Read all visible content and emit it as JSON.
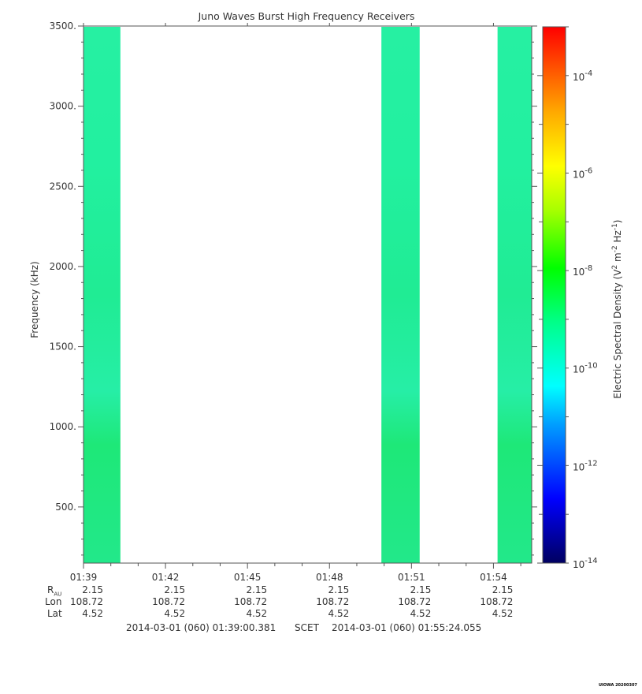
{
  "chart_data": {
    "type": "heatmap",
    "title": "Juno Waves Burst High Frequency Receivers",
    "ylabel": "Frequency (kHz)",
    "colorbar_label": "Electric Spectral Density (V² m⁻² Hz⁻¹)",
    "colorbar_label_parts": [
      "Electric Spectral Density (V",
      "2",
      " m",
      "-2",
      " Hz",
      "-1",
      ")"
    ],
    "ylim": [
      150,
      3500
    ],
    "yticks": [
      500,
      1000,
      1500,
      2000,
      2500,
      3000,
      3500
    ],
    "ytick_labels": [
      "500.",
      "1000.",
      "1500.",
      "2000.",
      "2500.",
      "3000.",
      "3500."
    ],
    "x_range": [
      "01:39:00",
      "01:55:24"
    ],
    "x_tick_labels": [
      "01:39",
      "01:42",
      "01:45",
      "01:48",
      "01:51",
      "01:54"
    ],
    "x_tick_minutes": [
      99,
      102,
      105,
      108,
      111,
      114
    ],
    "x_range_minutes": [
      99.0,
      115.4
    ],
    "color_scale": "log",
    "color_range_exponent": [
      -14,
      -3
    ],
    "colorbar_ticks": [
      {
        "base": "10",
        "exp": "-4",
        "value": -4
      },
      {
        "base": "10",
        "exp": "-6",
        "value": -6
      },
      {
        "base": "10",
        "exp": "-8",
        "value": -8
      },
      {
        "base": "10",
        "exp": "-10",
        "value": -10
      },
      {
        "base": "10",
        "exp": "-12",
        "value": -12
      },
      {
        "base": "10",
        "exp": "-14",
        "value": -14
      }
    ],
    "data_blocks": [
      {
        "start_minute": 99.0,
        "end_minute": 100.35,
        "level_exponent": -10
      },
      {
        "start_minute": 109.9,
        "end_minute": 111.3,
        "level_exponent": -10
      },
      {
        "start_minute": 114.15,
        "end_minute": 115.4,
        "level_exponent": -10
      }
    ],
    "colors": {
      "burst": "#22ee99",
      "burst_low": "#1ee878",
      "scale": [
        "#000080",
        "#0000ff",
        "#00ffff",
        "#00ff00",
        "#ffff00",
        "#ff8000",
        "#ff0000"
      ]
    }
  },
  "ephemeris": {
    "rows": [
      {
        "label": "R",
        "label_sub": "AU",
        "values": [
          "2.15",
          "2.15",
          "2.15",
          "2.15",
          "2.15",
          "2.15"
        ]
      },
      {
        "label": "Lon",
        "label_sub": "",
        "values": [
          "108.72",
          "108.72",
          "108.72",
          "108.72",
          "108.72",
          "108.72"
        ]
      },
      {
        "label": "Lat",
        "label_sub": "",
        "values": [
          "4.52",
          "4.52",
          "4.52",
          "4.52",
          "4.52",
          "4.52"
        ]
      }
    ]
  },
  "footer": {
    "start": "2014-03-01 (060) 01:39:00.381",
    "scet": "SCET",
    "end": "2014-03-01 (060) 01:55:24.055"
  },
  "stamp": "UIOWA 20200307"
}
